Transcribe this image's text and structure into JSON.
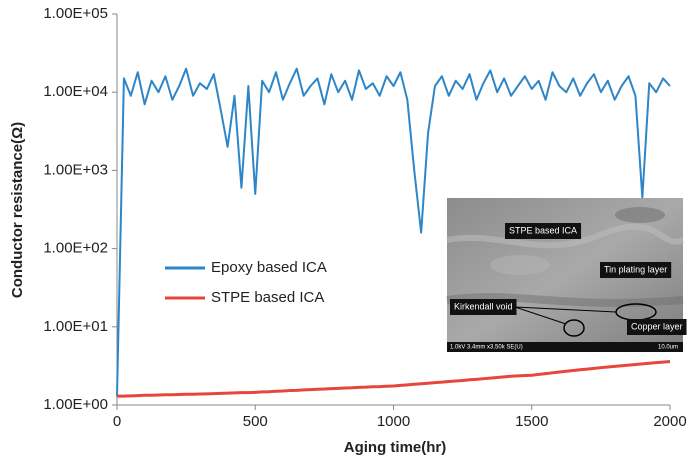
{
  "chart_data": {
    "type": "line",
    "x_label": "Aging time(hr)",
    "y_label": "Conductor resistance(Ω)",
    "log_y": true,
    "grid": false,
    "x": [
      0,
      25,
      50,
      75,
      100,
      125,
      150,
      175,
      200,
      225,
      250,
      275,
      300,
      325,
      350,
      375,
      400,
      425,
      450,
      475,
      500,
      525,
      550,
      575,
      600,
      625,
      650,
      675,
      700,
      725,
      750,
      775,
      800,
      825,
      850,
      875,
      900,
      925,
      950,
      975,
      1000,
      1025,
      1050,
      1075,
      1100,
      1125,
      1150,
      1175,
      1200,
      1225,
      1250,
      1275,
      1300,
      1325,
      1350,
      1375,
      1400,
      1425,
      1450,
      1475,
      1500,
      1525,
      1550,
      1575,
      1600,
      1625,
      1650,
      1675,
      1700,
      1725,
      1750,
      1775,
      1800,
      1825,
      1850,
      1875,
      1900,
      1925,
      1950,
      1975,
      2000
    ],
    "series": [
      {
        "name": "Epoxy based ICA",
        "color": "#2e86c8",
        "values": [
          1.3,
          15000,
          9000,
          18000,
          7000,
          14000,
          10000,
          16000,
          8000,
          12000,
          20000,
          9000,
          13000,
          11000,
          17000,
          6000,
          2000,
          9000,
          600,
          12000,
          500,
          14000,
          10000,
          18000,
          8000,
          13000,
          20000,
          9000,
          12000,
          15000,
          7000,
          17000,
          10000,
          14000,
          8000,
          19000,
          11000,
          13000,
          9000,
          16000,
          12000,
          18000,
          8000,
          1000,
          160,
          3000,
          12000,
          16000,
          9000,
          14000,
          11000,
          17000,
          8000,
          13000,
          19000,
          10000,
          15000,
          9000,
          12000,
          16000,
          11000,
          14000,
          8000,
          18000,
          12000,
          10000,
          15000,
          9000,
          13000,
          17000,
          10000,
          14000,
          8000,
          12000,
          16000,
          9000,
          450,
          13000,
          10000,
          15000,
          12000
        ]
      },
      {
        "name": "STPE based ICA",
        "color": "#e8463c",
        "values": [
          1.3,
          1.3,
          1.31,
          1.32,
          1.33,
          1.33,
          1.34,
          1.35,
          1.35,
          1.36,
          1.37,
          1.37,
          1.38,
          1.39,
          1.4,
          1.41,
          1.42,
          1.43,
          1.44,
          1.44,
          1.45,
          1.47,
          1.48,
          1.5,
          1.51,
          1.53,
          1.54,
          1.56,
          1.57,
          1.59,
          1.6,
          1.62,
          1.63,
          1.65,
          1.66,
          1.68,
          1.69,
          1.71,
          1.72,
          1.74,
          1.75,
          1.78,
          1.81,
          1.84,
          1.87,
          1.9,
          1.93,
          1.96,
          2.0,
          2.03,
          2.06,
          2.1,
          2.13,
          2.17,
          2.21,
          2.25,
          2.29,
          2.33,
          2.36,
          2.38,
          2.4,
          2.46,
          2.52,
          2.58,
          2.64,
          2.7,
          2.76,
          2.82,
          2.88,
          2.94,
          3.0,
          3.06,
          3.12,
          3.18,
          3.24,
          3.3,
          3.36,
          3.42,
          3.48,
          3.54,
          3.6
        ]
      }
    ],
    "xlim": [
      0,
      2000
    ],
    "xticks": [
      0,
      500,
      1000,
      1500,
      2000
    ],
    "ylim": [
      1,
      100000
    ],
    "yticks": [
      {
        "value": 1,
        "label": "1.00E+00"
      },
      {
        "value": 10,
        "label": "1.00E+01"
      },
      {
        "value": 100,
        "label": "1.00E+02"
      },
      {
        "value": 1000,
        "label": "1.00E+03"
      },
      {
        "value": 10000,
        "label": "1.00E+04"
      },
      {
        "value": 100000,
        "label": "1.00E+05"
      }
    ],
    "inset": {
      "labels": [
        "STPE based ICA",
        "Tin plating layer",
        "Kirkendall void",
        "Copper layer"
      ],
      "footer": [
        "1.0kV 3.4mm x3.50k SE(U)",
        "10.0um"
      ]
    }
  }
}
